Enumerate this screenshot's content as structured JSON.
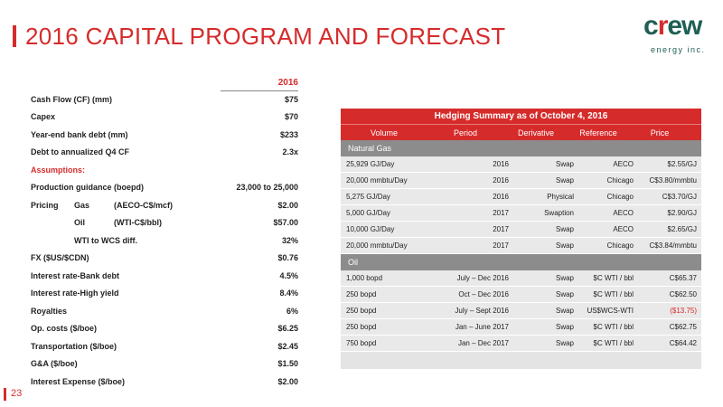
{
  "header": {
    "title": "2016 CAPITAL PROGRAM AND FORECAST",
    "logo_word_c": "c",
    "logo_word_r": "r",
    "logo_word_ew": "ew",
    "logo_sub": "energy inc."
  },
  "left_table": {
    "year_header": "2016",
    "rows": [
      {
        "label": "Cash Flow (CF) (mm)",
        "value": "$75"
      },
      {
        "label": "Capex",
        "value": "$70"
      },
      {
        "label": "Year-end bank debt (mm)",
        "value": "$233"
      },
      {
        "label": "Debt to annualized Q4 CF",
        "value": "2.3x"
      },
      {
        "label": "Assumptions:",
        "value": ""
      },
      {
        "label": "Production guidance (boepd)",
        "value": "23,000 to 25,000"
      },
      {
        "label_a": "Pricing",
        "label_b": "Gas",
        "label_c": "(AECO-C$/mcf)",
        "value": "$2.00"
      },
      {
        "label_b": "Oil",
        "label_c": "(WTI-C$/bbl)",
        "value": "$57.00"
      },
      {
        "label": "WTI to WCS diff.",
        "value": "32%"
      },
      {
        "label": "FX ($US/$CDN)",
        "value": "$0.76"
      },
      {
        "label": "Interest rate-Bank debt",
        "value": "4.5%"
      },
      {
        "label": "Interest rate-High yield",
        "value": "8.4%"
      },
      {
        "label": "Royalties",
        "value": "6%"
      },
      {
        "label": "Op. costs ($/boe)",
        "value": "$6.25"
      },
      {
        "label": "Transportation ($/boe)",
        "value": "$2.45"
      },
      {
        "label": "G&A ($/boe)",
        "value": "$1.50"
      },
      {
        "label": "Interest Expense  ($/boe)",
        "value": "$2.00"
      }
    ]
  },
  "hedging": {
    "title": "Hedging Summary as of October 4, 2016",
    "columns": [
      "Volume",
      "Period",
      "Derivative",
      "Reference",
      "Price"
    ],
    "sections": [
      {
        "name": "Natural Gas",
        "rows": [
          [
            "25,929 GJ/Day",
            "2016",
            "Swap",
            "AECO",
            "$2.55/GJ"
          ],
          [
            "20,000 mmbtu/Day",
            "2016",
            "Swap",
            "Chicago",
            "C$3.80/mmbtu"
          ],
          [
            "5,275 GJ/Day",
            "2016",
            "Physical",
            "Chicago",
            "C$3.70/GJ"
          ],
          [
            "5,000 GJ/Day",
            "2017",
            "Swaption",
            "AECO",
            "$2.90/GJ"
          ],
          [
            "10,000 GJ/Day",
            "2017",
            "Swap",
            "AECO",
            "$2.65/GJ"
          ],
          [
            "20,000 mmbtu/Day",
            "2017",
            "Swap",
            "Chicago",
            "C$3.84/mmbtu"
          ]
        ]
      },
      {
        "name": "Oil",
        "rows": [
          [
            "1,000 bopd",
            "July – Dec 2016",
            "Swap",
            "$C WTI / bbl",
            "C$65.37"
          ],
          [
            "250 bopd",
            "Oct – Dec 2016",
            "Swap",
            "$C WTI / bbl",
            "C$62.50"
          ],
          [
            "250 bopd",
            "July – Sept 2016",
            "Swap",
            "US$WCS-WTI",
            "($13.75)"
          ],
          [
            "250 bopd",
            "Jan – June 2017",
            "Swap",
            "$C WTI / bbl",
            "C$62.75"
          ],
          [
            "750 bopd",
            "Jan – Dec 2017",
            "Swap",
            "$C WTI / bbl",
            "C$64.42"
          ]
        ]
      }
    ],
    "negative_color": "#d62b2b"
  },
  "footer": {
    "page_number": "23"
  },
  "colors": {
    "accent": "#d62b2b",
    "logo_green": "#1f5f55"
  }
}
